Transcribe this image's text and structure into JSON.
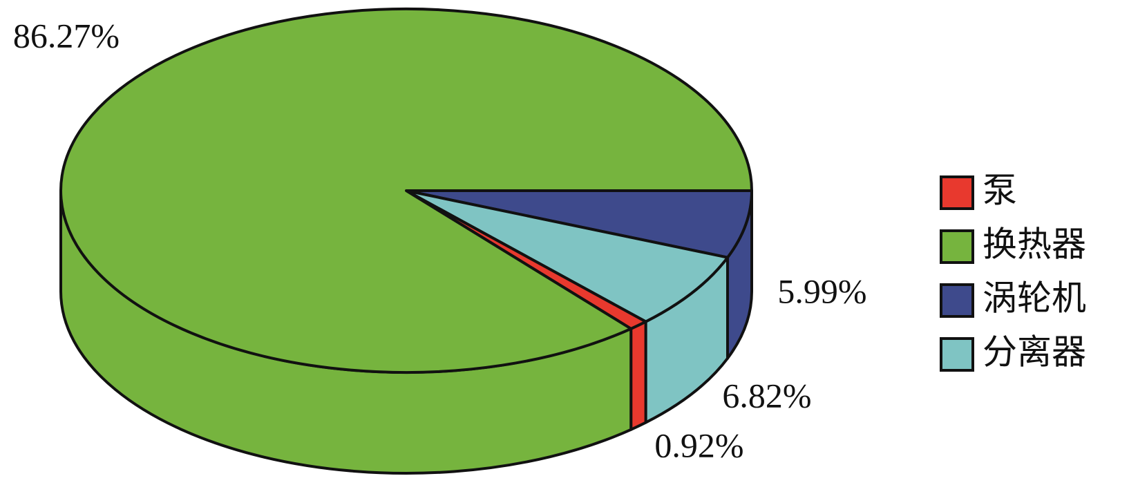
{
  "chart_data": {
    "type": "pie",
    "categories": [
      "泵",
      "换热器",
      "涡轮机",
      "分离器"
    ],
    "values": [
      0.92,
      86.27,
      5.99,
      6.82
    ],
    "value_labels": [
      "0.92%",
      "86.27%",
      "5.99%",
      "6.82%"
    ],
    "colors": [
      "#e8392e",
      "#76b43e",
      "#3e4a8c",
      "#7fc4c3"
    ],
    "legend": "right"
  }
}
